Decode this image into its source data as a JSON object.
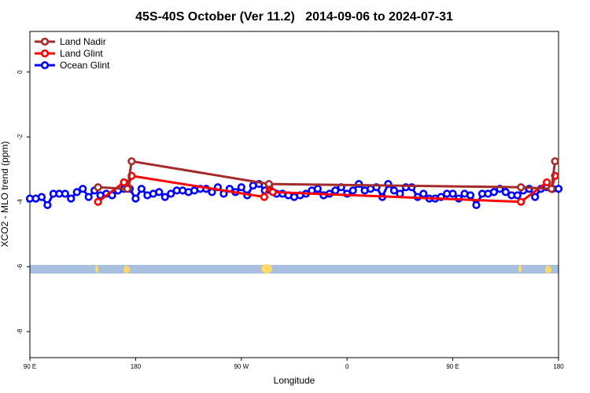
{
  "chart_data": {
    "type": "line",
    "title": "45S-40S October (Ver 11.2)   2014-09-06 to 2024-07-31",
    "xlabel": "Longitude",
    "ylabel": "XCO2 - MLO trend (ppm)",
    "xlim": [
      90,
      540
    ],
    "ylim": [
      -8.8,
      1.25
    ],
    "xticks": [
      {
        "value": 90,
        "label": "90 E"
      },
      {
        "value": 180,
        "label": "180"
      },
      {
        "value": 270,
        "label": "90 W"
      },
      {
        "value": 360,
        "label": "0"
      },
      {
        "value": 450,
        "label": "90 E"
      },
      {
        "value": 540,
        "label": "180"
      }
    ],
    "yticks": [
      0,
      -2,
      -4,
      -6,
      -8
    ],
    "legend": "top-left",
    "series": [
      {
        "name": "Land Nadir",
        "color": "#a52a2a",
        "x": [
          148,
          173,
          176.6,
          293.5,
          508,
          534,
          537
        ],
        "values": [
          -3.55,
          -3.6,
          -2.75,
          -3.45,
          -3.55,
          -3.6,
          -2.75
        ]
      },
      {
        "name": "Land Glint",
        "color": "#ff0000",
        "x": [
          148,
          170,
          173.3,
          176.6,
          289.5,
          293.5,
          296.8,
          508,
          530,
          534,
          537
        ],
        "values": [
          -4.0,
          -3.4,
          -3.55,
          -3.2,
          -3.85,
          -3.5,
          -3.7,
          -4.0,
          -3.4,
          -3.6,
          -3.2
        ]
      },
      {
        "name": "Ocean Glint",
        "color": "#0000ff",
        "x": [
          90,
          95,
          100,
          105,
          110,
          115,
          120,
          125,
          130,
          135,
          140,
          145,
          150,
          155,
          160,
          165,
          170,
          175,
          180,
          185,
          190,
          195,
          200,
          205,
          210,
          215,
          220,
          225,
          230,
          235,
          240,
          245,
          250,
          255,
          260,
          265,
          270,
          275,
          280,
          285,
          290,
          295,
          300,
          305,
          310,
          315,
          320,
          325,
          330,
          335,
          340,
          345,
          350,
          355,
          360,
          365,
          370,
          375,
          380,
          385,
          390,
          395,
          400,
          405,
          410,
          415,
          420,
          425,
          430,
          435,
          440,
          445,
          450,
          455,
          460,
          465,
          470,
          475,
          480,
          485,
          490,
          495,
          500,
          505,
          510,
          515,
          520,
          525,
          530,
          535,
          540
        ],
        "values": [
          -3.9,
          -3.9,
          -3.85,
          -4.1,
          -3.75,
          -3.75,
          -3.75,
          -3.9,
          -3.7,
          -3.6,
          -3.85,
          -3.65,
          -3.8,
          -3.75,
          -3.8,
          -3.65,
          -3.6,
          -3.6,
          -3.9,
          -3.6,
          -3.8,
          -3.75,
          -3.7,
          -3.85,
          -3.75,
          -3.65,
          -3.65,
          -3.7,
          -3.65,
          -3.6,
          -3.6,
          -3.7,
          -3.55,
          -3.75,
          -3.6,
          -3.7,
          -3.55,
          -3.8,
          -3.5,
          -3.45,
          -3.65,
          -3.65,
          -3.75,
          -3.75,
          -3.8,
          -3.85,
          -3.8,
          -3.75,
          -3.65,
          -3.6,
          -3.8,
          -3.75,
          -3.65,
          -3.55,
          -3.75,
          -3.65,
          -3.45,
          -3.65,
          -3.6,
          -3.55,
          -3.85,
          -3.45,
          -3.65,
          -3.75,
          -3.55,
          -3.55,
          -3.85,
          -3.75,
          -3.9,
          -3.9,
          -3.85,
          -3.75,
          -3.75,
          -3.9,
          -3.75,
          -3.8,
          -4.1,
          -3.75,
          -3.75,
          -3.7,
          -3.6,
          -3.7,
          -3.8,
          -3.8,
          -3.65,
          -3.6,
          -3.85,
          -3.6,
          -3.55,
          -3.6,
          -3.6
        ]
      }
    ]
  }
}
